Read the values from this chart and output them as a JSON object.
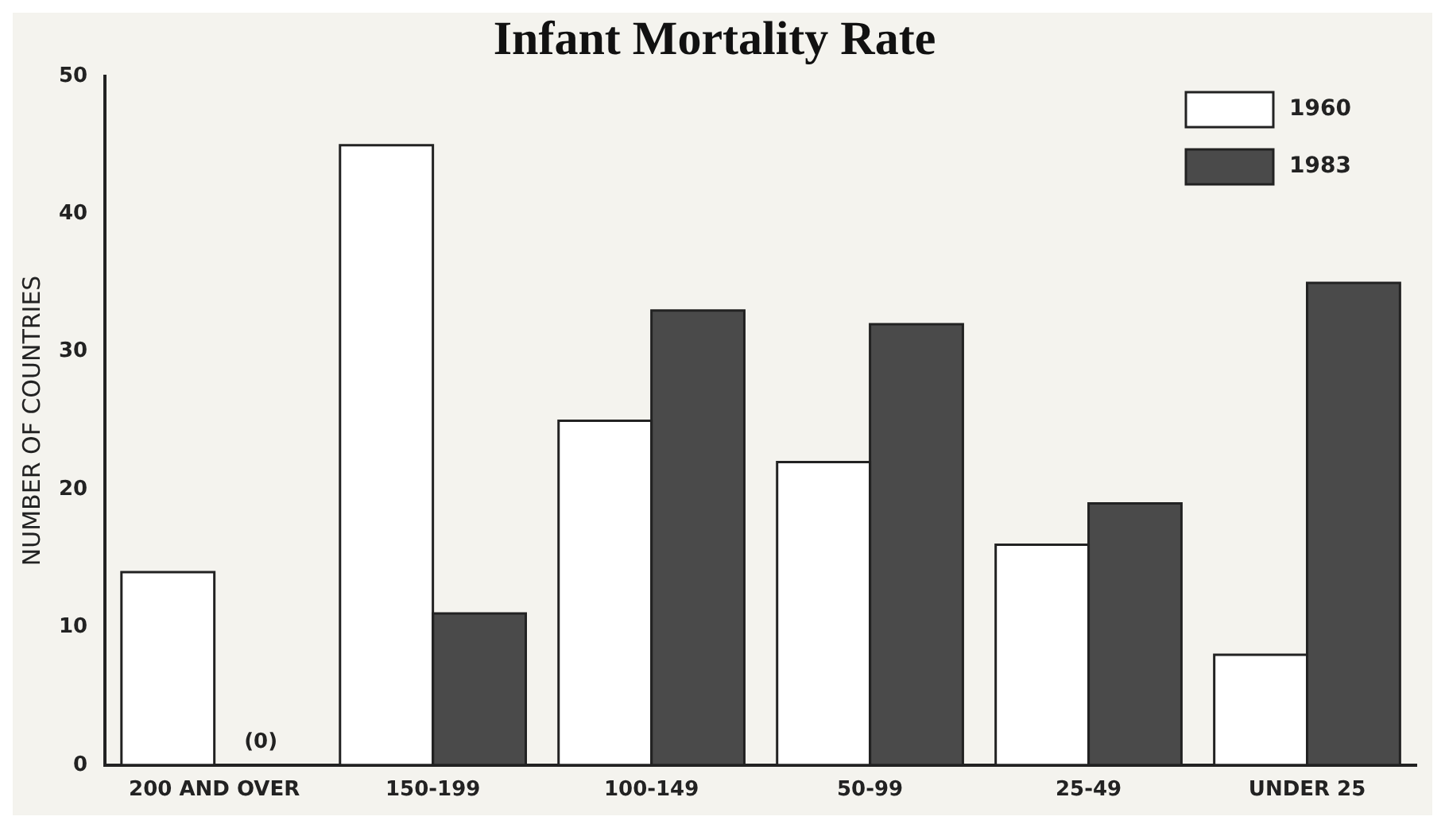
{
  "chart_data": {
    "type": "bar",
    "title": "Infant Mortality Rate",
    "ylabel": "NUMBER OF COUNTRIES",
    "categories": [
      "200 AND OVER",
      "150-199",
      "100-149",
      "50-99",
      "25-49",
      "UNDER 25"
    ],
    "series": [
      {
        "name": "1960",
        "color": "#ffffff",
        "values": [
          14,
          45,
          25,
          22,
          16,
          8
        ]
      },
      {
        "name": "1983",
        "color": "#4a4a4a",
        "values": [
          0,
          11,
          33,
          32,
          19,
          35
        ]
      }
    ],
    "ylim": [
      0,
      50
    ],
    "yticks": [
      0,
      10,
      20,
      30,
      40,
      50
    ],
    "grid": false,
    "legend": "top right",
    "annotations": [
      {
        "text": "(0)",
        "x": "200 AND OVER",
        "y": 0
      }
    ]
  }
}
